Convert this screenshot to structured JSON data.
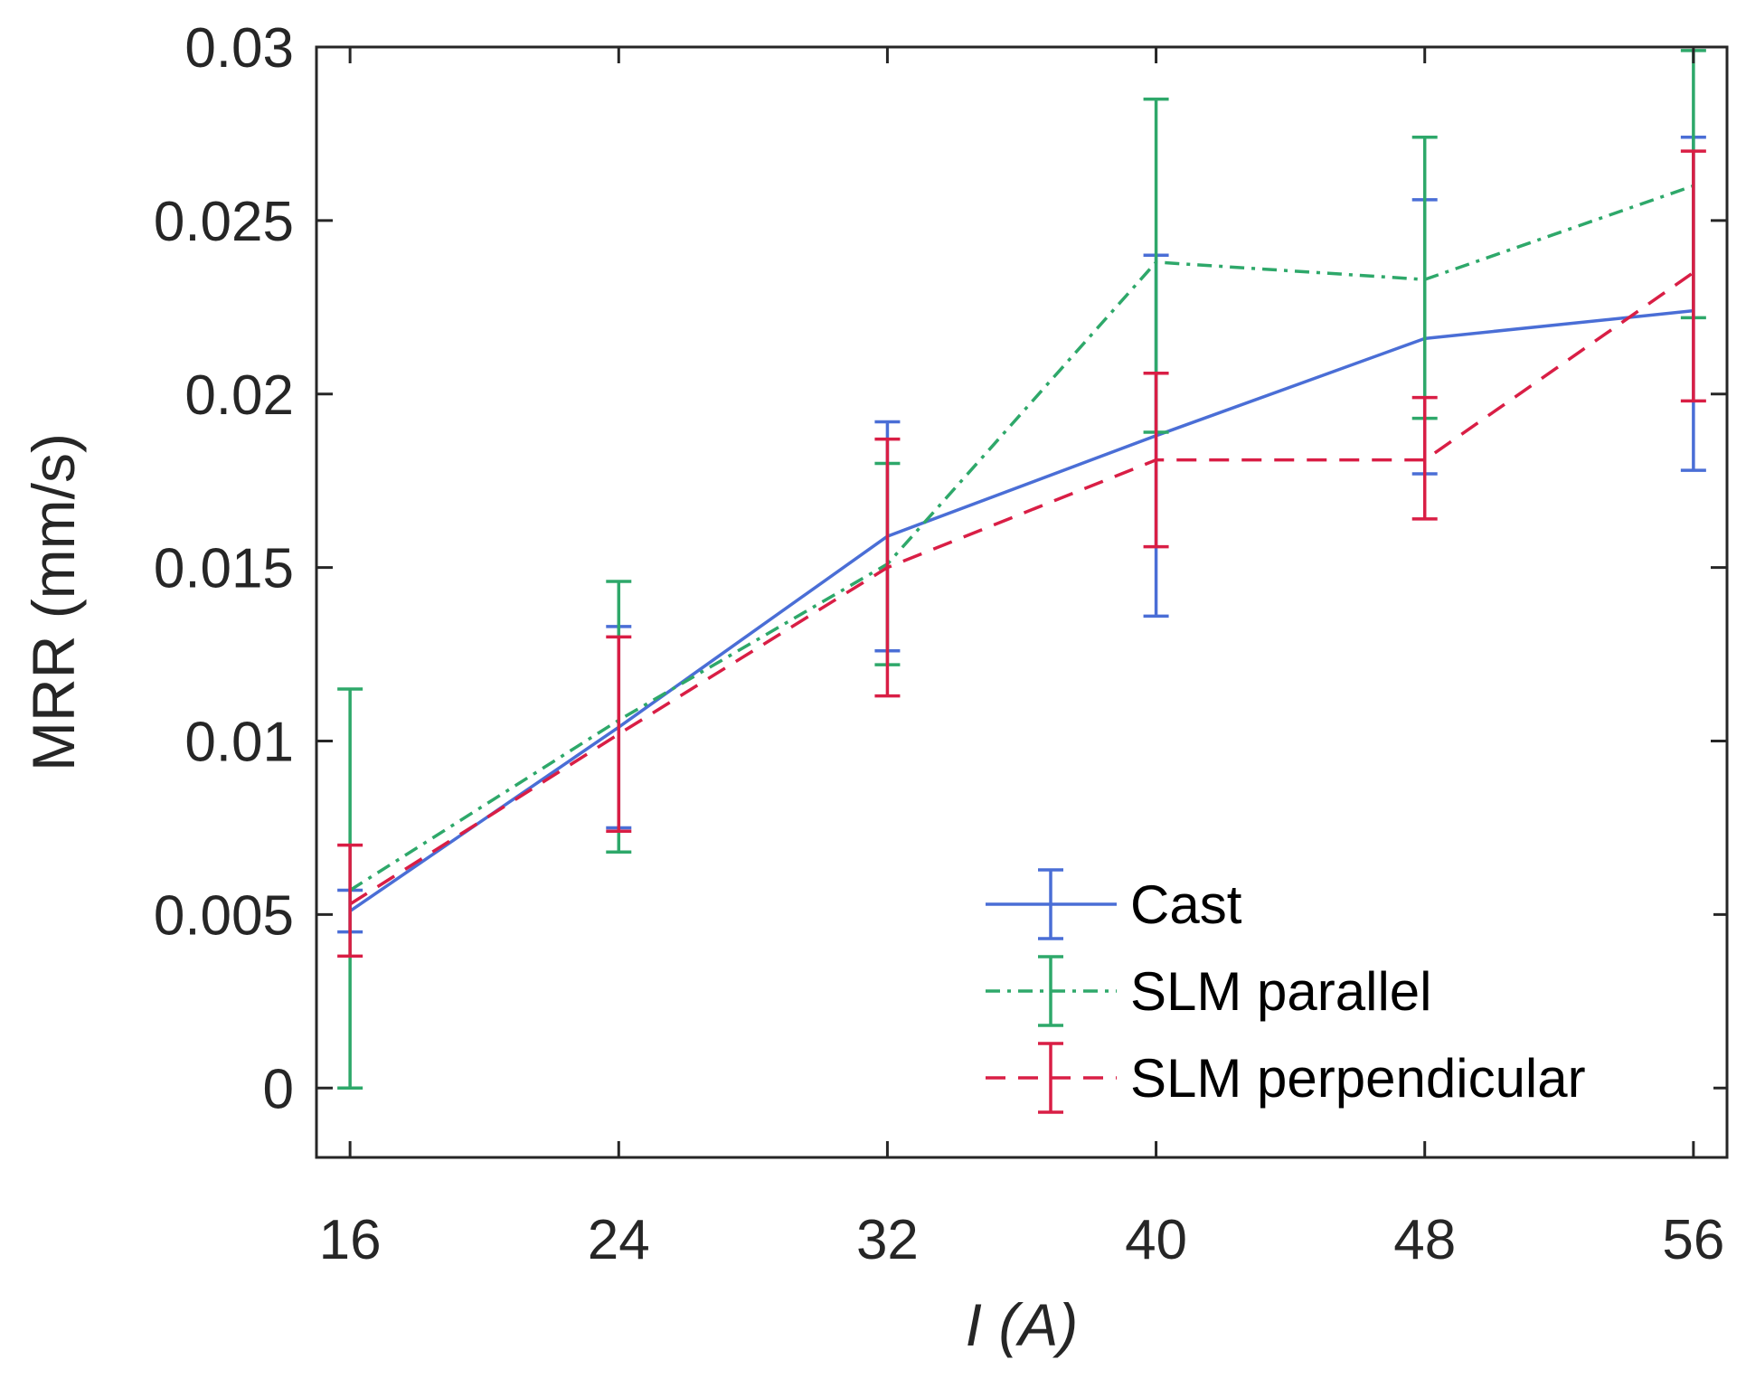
{
  "chart_data": {
    "type": "line",
    "title": "",
    "xlabel": "I (A)",
    "ylabel": "MRR (mm/s)",
    "x": [
      16,
      24,
      32,
      40,
      48,
      56
    ],
    "xlim": [
      15,
      57
    ],
    "ylim": [
      -0.002,
      0.03
    ],
    "xticks": [
      "16",
      "24",
      "32",
      "40",
      "48",
      "56"
    ],
    "yticks": [
      "0",
      "0.005",
      "0.01",
      "0.015",
      "0.02",
      "0.025",
      "0.03"
    ],
    "grid": false,
    "legend_position": "bottom-right",
    "series": [
      {
        "name": "Cast",
        "color": "#4a6ed6",
        "style": "solid",
        "values": [
          0.0051,
          0.0104,
          0.0159,
          0.0188,
          0.0216,
          0.0224
        ],
        "err_low": [
          0.0045,
          0.0075,
          0.0126,
          0.0136,
          0.0177,
          0.0178
        ],
        "err_high": [
          0.0057,
          0.0133,
          0.0192,
          0.024,
          0.0256,
          0.0274
        ]
      },
      {
        "name": "SLM parallel",
        "color": "#2ea86a",
        "style": "dashdot",
        "values": [
          0.0057,
          0.0106,
          0.0151,
          0.0238,
          0.0233,
          0.026
        ],
        "err_low": [
          0.0,
          0.0068,
          0.0122,
          0.0189,
          0.0193,
          0.0222
        ],
        "err_high": [
          0.0115,
          0.0146,
          0.018,
          0.0285,
          0.0274,
          0.0299
        ]
      },
      {
        "name": "SLM perpendicular",
        "color": "#d91e45",
        "style": "dashed",
        "values": [
          0.0053,
          0.0102,
          0.015,
          0.0181,
          0.0181,
          0.0235
        ],
        "err_low": [
          0.0038,
          0.0074,
          0.0113,
          0.0156,
          0.0164,
          0.0198
        ],
        "err_high": [
          0.007,
          0.013,
          0.0187,
          0.0206,
          0.0199,
          0.027
        ]
      }
    ]
  }
}
